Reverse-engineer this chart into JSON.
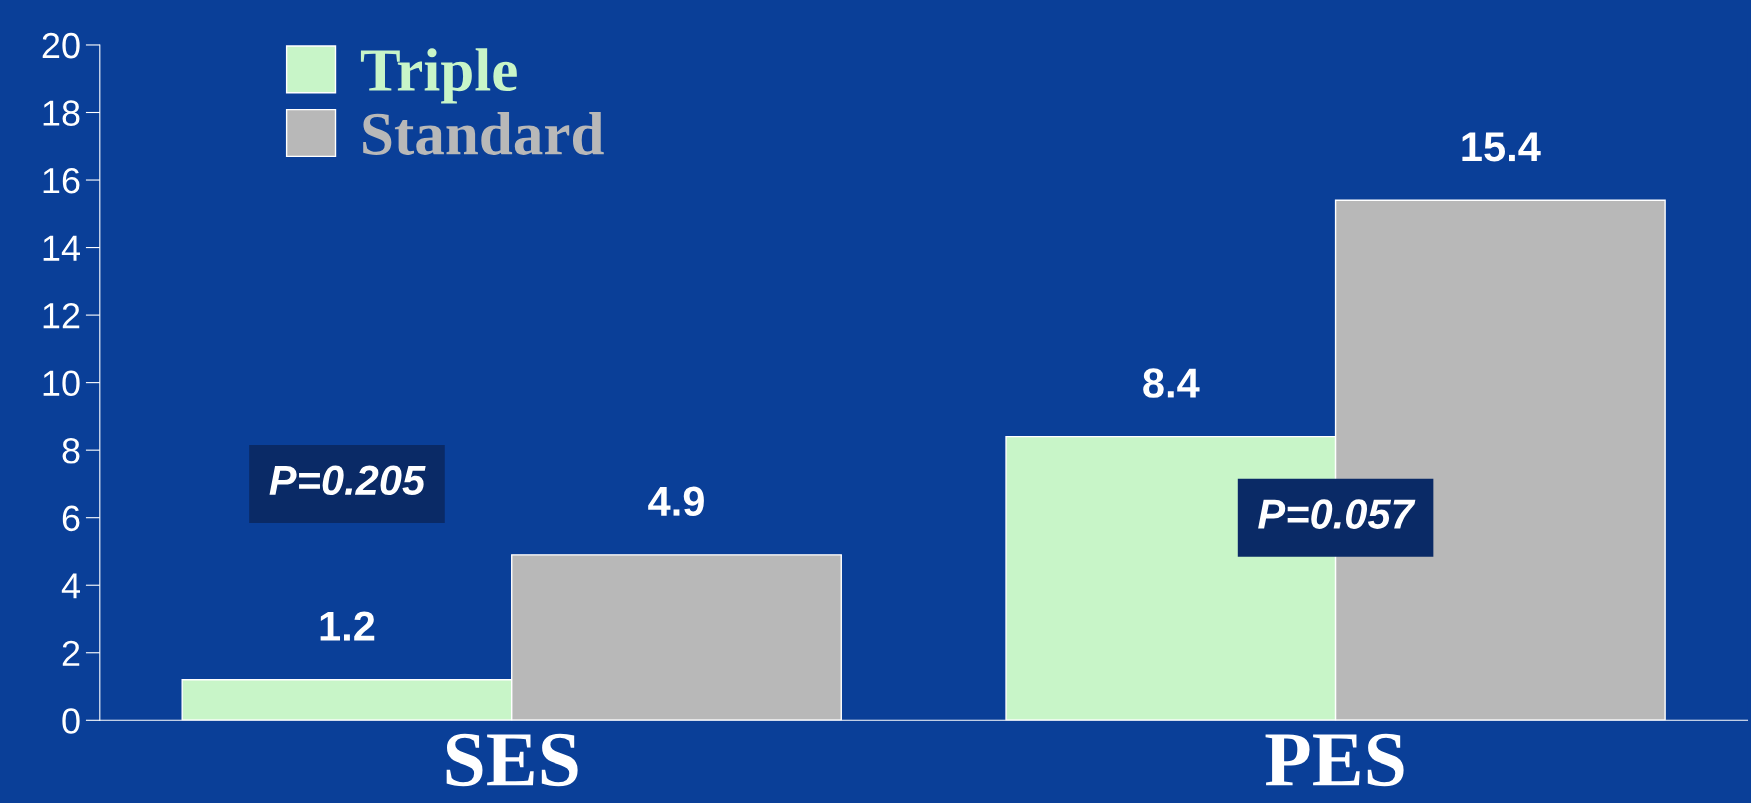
{
  "chart_data": {
    "type": "bar",
    "categories": [
      "SES",
      "PES"
    ],
    "series": [
      {
        "name": "Triple",
        "color": "#c8f5c8",
        "values": [
          1.2,
          8.4
        ]
      },
      {
        "name": "Standard",
        "color": "#b8b8b8",
        "values": [
          4.9,
          15.4
        ]
      }
    ],
    "ylim": [
      0,
      20
    ],
    "yticks": [
      0,
      2,
      4,
      6,
      8,
      10,
      12,
      14,
      16,
      18,
      20
    ],
    "grid": false,
    "legend": "top left",
    "data_labels": true,
    "annotations": [
      "P=0.205",
      "P=0.057"
    ]
  }
}
